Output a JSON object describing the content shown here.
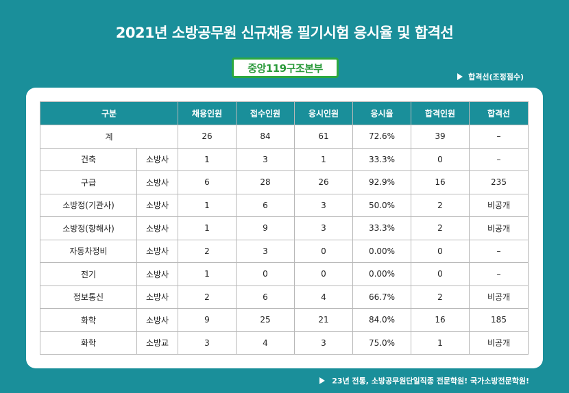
{
  "title": "2021년 소방공무원 신규채용 필기시험 응시율 및 합격선",
  "badge": "중앙119구조본부",
  "note_top": "합격선(조정점수)",
  "note_bottom": "23년 전통, 소방공무원단일직종 전문학원! 국가소방전문학원!",
  "table": {
    "headers": [
      "구분",
      "채용인원",
      "접수인원",
      "응시인원",
      "응시율",
      "합격인원",
      "합격선"
    ],
    "total_row": [
      "계",
      "26",
      "84",
      "61",
      "72.6%",
      "39",
      "–"
    ],
    "rows": [
      [
        "건축",
        "소방사",
        "1",
        "3",
        "1",
        "33.3%",
        "0",
        "–"
      ],
      [
        "구급",
        "소방사",
        "6",
        "28",
        "26",
        "92.9%",
        "16",
        "235"
      ],
      [
        "소방정(기관사)",
        "소방사",
        "1",
        "6",
        "3",
        "50.0%",
        "2",
        "비공개"
      ],
      [
        "소방정(항해사)",
        "소방사",
        "1",
        "9",
        "3",
        "33.3%",
        "2",
        "비공개"
      ],
      [
        "자동차정비",
        "소방사",
        "2",
        "3",
        "0",
        "0.00%",
        "0",
        "–"
      ],
      [
        "전기",
        "소방사",
        "1",
        "0",
        "0",
        "0.00%",
        "0",
        "–"
      ],
      [
        "정보통신",
        "소방사",
        "2",
        "6",
        "4",
        "66.7%",
        "2",
        "비공개"
      ],
      [
        "화학",
        "소방사",
        "9",
        "25",
        "21",
        "84.0%",
        "16",
        "185"
      ],
      [
        "화학",
        "소방교",
        "3",
        "4",
        "3",
        "75.0%",
        "1",
        "비공개"
      ]
    ]
  }
}
